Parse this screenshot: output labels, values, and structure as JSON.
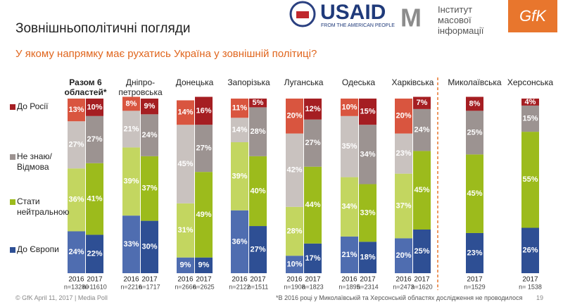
{
  "slide": {
    "usaid": "USAID",
    "usaid_tagline": "FROM THE AMERICAN PEOPLE",
    "imi": "Інститут масової інформації",
    "gfk": "GfK",
    "footer": "© GfK April 11, 2017 | Media Poll",
    "footnote": "*В 2016 році у Миколаївській та Херсонській областях дослідження не проводилося",
    "page": "19"
  },
  "chart_data": {
    "type": "bar",
    "stacked": true,
    "title": "Зовнішньополітичні погляди",
    "subtitle": "У якому напрямку має рухатись Україна у зовнішній політиці?",
    "groups": [
      "Разом 6 областей*",
      "Дніпро-петровська",
      "Донецька",
      "Запорізька",
      "Луганська",
      "Одеська",
      "Харківська",
      "Миколаївська",
      "Херсонська"
    ],
    "categories": [
      "2016",
      "2017",
      "2016",
      "2017",
      "2016",
      "2017",
      "2016",
      "2017",
      "2016",
      "2017",
      "2016",
      "2017",
      "2016",
      "2017",
      null,
      "2017",
      null,
      "2017"
    ],
    "sample_sizes": [
      "n=13280",
      "n=11610",
      "n=2216",
      "n=1717",
      "n=2666",
      "n=2625",
      "n=2122",
      "n=1511",
      "n=1908",
      "n=1823",
      "n=1895",
      "n=2314",
      "n=2473",
      "n=1620",
      null,
      "n=1529",
      null,
      "n= 1538"
    ],
    "ylim": [
      0,
      100
    ],
    "series": [
      {
        "name": "До Європи",
        "color": "#2e4f94",
        "light_color": "#4f6db0",
        "values": [
          24,
          22,
          33,
          30,
          9,
          9,
          36,
          27,
          10,
          17,
          21,
          18,
          20,
          25,
          null,
          23,
          null,
          26
        ],
        "value_labels": [
          "24%",
          "22%",
          "33%",
          "30%",
          "9%",
          "9%",
          "36%",
          "27%",
          "10%",
          "17%",
          "21%",
          "18%",
          "20%",
          "25%",
          null,
          "23%",
          null,
          "26%"
        ]
      },
      {
        "name": "Стати нейтральною",
        "color": "#9cbb1c",
        "light_color": "#c3d660",
        "values": [
          36,
          41,
          39,
          37,
          31,
          49,
          39,
          40,
          28,
          44,
          34,
          33,
          37,
          45,
          null,
          45,
          null,
          55
        ],
        "value_labels": [
          "36%",
          "41%",
          "39%",
          "37%",
          "31%",
          "49%",
          "39%",
          "40%",
          "28%",
          "44%",
          "34%",
          "33%",
          "37%",
          "45%",
          null,
          "45%",
          null,
          "55%"
        ]
      },
      {
        "name": "Не знаю/ Відмова",
        "color": "#9c9391",
        "light_color": "#c9c2bf",
        "values": [
          27,
          27,
          21,
          24,
          45,
          27,
          14,
          28,
          42,
          27,
          35,
          34,
          23,
          24,
          null,
          25,
          null,
          15
        ],
        "value_labels": [
          "27%",
          "27%",
          "21%",
          "24%",
          "45%",
          "27%",
          "14%",
          "28%",
          "42%",
          "27%",
          "35%",
          "34%",
          "23%",
          "24%",
          null,
          "25%",
          null,
          "15%"
        ]
      },
      {
        "name": "До Росії",
        "color": "#a51e22",
        "light_color": "#d9553f",
        "values": [
          13,
          10,
          8,
          9,
          14,
          16,
          11,
          5,
          20,
          12,
          10,
          15,
          20,
          7,
          null,
          8,
          null,
          4
        ],
        "value_labels": [
          "13%",
          "10%",
          "8%",
          "9%",
          "14%",
          "16%",
          "11%",
          "5%",
          "20%",
          "12%",
          "10%",
          "15%",
          "20%",
          "7%",
          null,
          "8%",
          null,
          "4%"
        ]
      }
    ]
  }
}
